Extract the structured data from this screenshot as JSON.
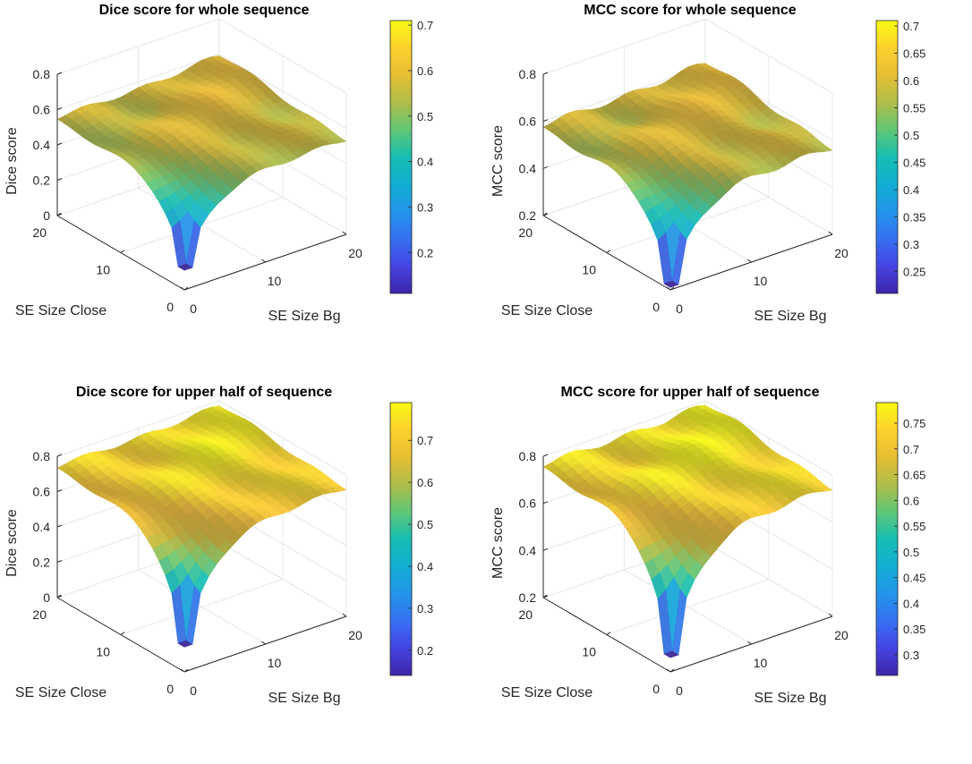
{
  "figure": {
    "layout": "2x2"
  },
  "chart_data": [
    {
      "type": "surface",
      "title": "Dice score for whole sequence",
      "xlabel": "SE Size Bg",
      "ylabel": "SE Size Close",
      "zlabel": "Dice score",
      "x_ticks": [
        "0",
        "10",
        "20"
      ],
      "y_ticks": [
        "0",
        "10",
        "20"
      ],
      "z_ticks": [
        "0",
        "0.2",
        "0.4",
        "0.6",
        "0.8"
      ],
      "zlim": [
        0,
        0.8
      ],
      "clim": [
        0.11,
        0.71
      ],
      "colorbar_ticks": [
        "0.2",
        "0.3",
        "0.4",
        "0.5",
        "0.6",
        "0.7"
      ],
      "plateau_value": 0.55,
      "ridge_value": 0.6,
      "min_value": 0.11,
      "colorbar": true
    },
    {
      "type": "surface",
      "title": "MCC score for whole sequence",
      "xlabel": "SE Size Bg",
      "ylabel": "SE Size Close",
      "zlabel": "MCC score",
      "x_ticks": [
        "0",
        "10",
        "20"
      ],
      "y_ticks": [
        "0",
        "10",
        "20"
      ],
      "z_ticks": [
        "0.2",
        "0.4",
        "0.6",
        "0.8"
      ],
      "zlim": [
        0.2,
        0.8
      ],
      "clim": [
        0.21,
        0.71
      ],
      "colorbar_ticks": [
        "0.25",
        "0.3",
        "0.35",
        "0.4",
        "0.45",
        "0.5",
        "0.55",
        "0.6",
        "0.65",
        "0.7"
      ],
      "plateau_value": 0.58,
      "ridge_value": 0.62,
      "min_value": 0.21,
      "colorbar": true
    },
    {
      "type": "surface",
      "title": "Dice score for upper half of sequence",
      "xlabel": "SE Size Bg",
      "ylabel": "SE Size Close",
      "zlabel": "Dice score",
      "x_ticks": [
        "0",
        "10",
        "20"
      ],
      "y_ticks": [
        "0",
        "10",
        "20"
      ],
      "z_ticks": [
        "0",
        "0.2",
        "0.4",
        "0.6",
        "0.8"
      ],
      "zlim": [
        0,
        0.8
      ],
      "clim": [
        0.14,
        0.79
      ],
      "colorbar_ticks": [
        "0.2",
        "0.3",
        "0.4",
        "0.5",
        "0.6",
        "0.7"
      ],
      "plateau_value": 0.74,
      "ridge_value": 0.78,
      "min_value": 0.14,
      "colorbar": true
    },
    {
      "type": "surface",
      "title": "MCC score for upper half of sequence",
      "xlabel": "SE Size Bg",
      "ylabel": "SE Size Close",
      "zlabel": "MCC score",
      "x_ticks": [
        "0",
        "10",
        "20"
      ],
      "y_ticks": [
        "0",
        "10",
        "20"
      ],
      "z_ticks": [
        "0.2",
        "0.4",
        "0.6",
        "0.8"
      ],
      "zlim": [
        0.2,
        0.8
      ],
      "clim": [
        0.26,
        0.79
      ],
      "colorbar_ticks": [
        "0.3",
        "0.35",
        "0.4",
        "0.45",
        "0.5",
        "0.55",
        "0.6",
        "0.65",
        "0.7",
        "0.75"
      ],
      "plateau_value": 0.76,
      "ridge_value": 0.79,
      "min_value": 0.26,
      "colorbar": true
    }
  ]
}
